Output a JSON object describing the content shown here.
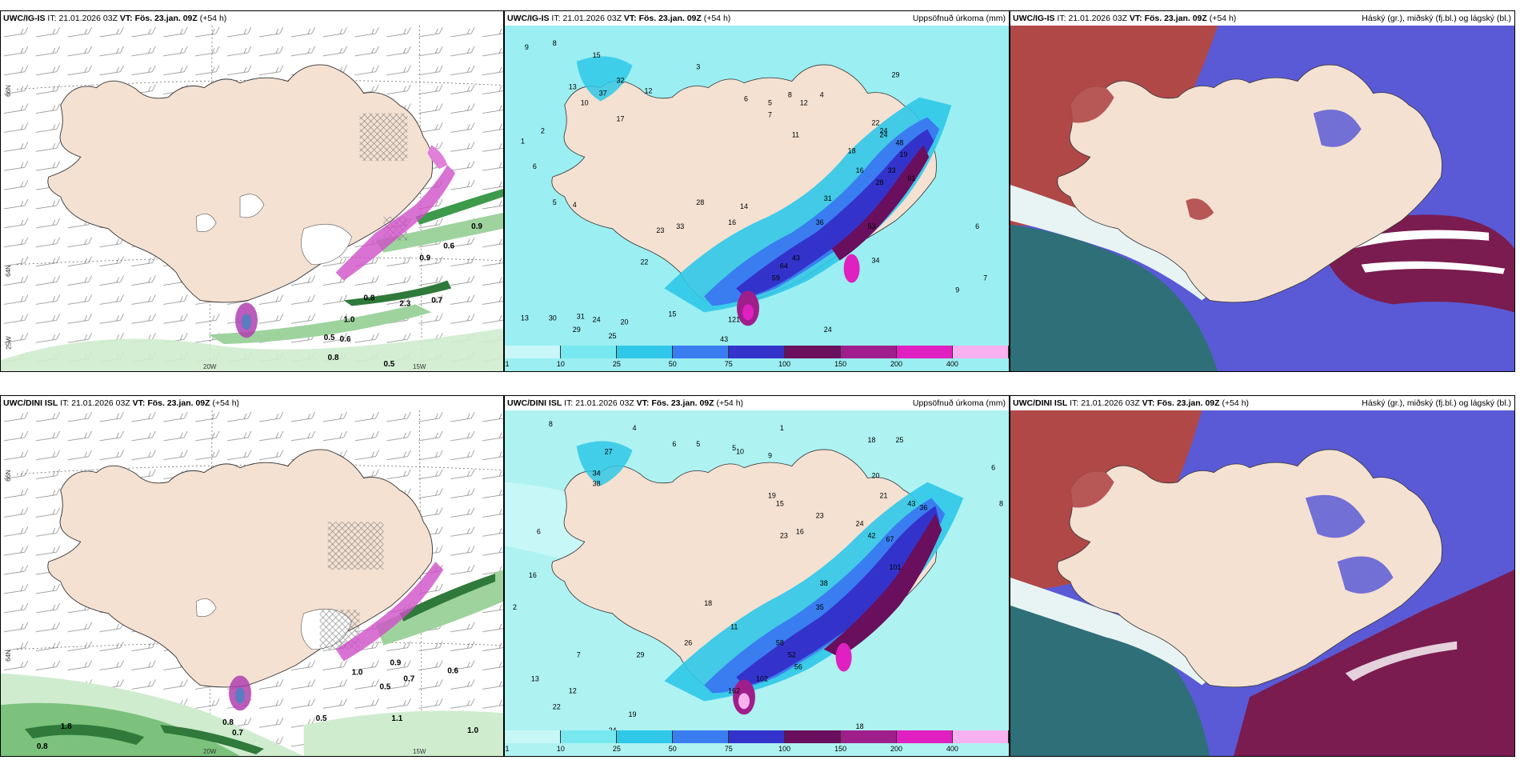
{
  "colors": {
    "land": "#f4e1d2",
    "sea_light": "#aef2f2",
    "precip_1": "#c8f7f7",
    "precip_10": "#77e8f0",
    "precip_25": "#2fc8e8",
    "precip_50": "#3a7df0",
    "precip_75": "#3333cc",
    "precip_100": "#6a0e5e",
    "precip_150": "#a01e8c",
    "precip_200": "#e020c0",
    "precip_400": "#f7b0f0",
    "cloud_high": "#b04848",
    "cloud_mid": "#5a5ad6",
    "cloud_low": "#2f6f78",
    "snow_magenta": "#d050c8",
    "wind_green": "#3c9a4a"
  },
  "panels": [
    {
      "model": "UWC/IG-IS",
      "it_label": "IT:",
      "it_value": "21.01.2026 03Z",
      "vt_label": "VT:",
      "vt_value": "Fös. 23.jan. 09Z",
      "lead": "(+54 h)",
      "right_title": ""
    },
    {
      "model": "UWC/IG-IS",
      "it_label": "IT:",
      "it_value": "21.01.2026 03Z",
      "vt_label": "VT:",
      "vt_value": "Fös. 23.jan. 09Z",
      "lead": "(+54 h)",
      "right_title": "Uppsöfnuð úrkoma (mm)"
    },
    {
      "model": "UWC/IG-IS",
      "it_label": "IT:",
      "it_value": "21.01.2026 03Z",
      "vt_label": "VT:",
      "vt_value": "Fös. 23.jan. 09Z",
      "lead": "(+54 h)",
      "right_title": "Háský (gr.), miðský (fj.bl.) og lágský (bl.)"
    },
    {
      "model": "UWC/DINI ISL",
      "it_label": "IT:",
      "it_value": "21.01.2026 03Z",
      "vt_label": "VT:",
      "vt_value": "Fös. 23.jan. 09Z",
      "lead": "(+54 h)",
      "right_title": ""
    },
    {
      "model": "UWC/DINI ISL",
      "it_label": "IT:",
      "it_value": "21.01.2026 03Z",
      "vt_label": "VT:",
      "vt_value": "Fös. 23.jan. 09Z",
      "lead": "(+54 h)",
      "right_title": "Uppsöfnuð úrkoma (mm)"
    },
    {
      "model": "UWC/DINI ISL",
      "it_label": "IT:",
      "it_value": "21.01.2026 03Z",
      "vt_label": "VT:",
      "vt_value": "Fös. 23.jan. 09Z",
      "lead": "(+54 h)",
      "right_title": "Háský (gr.), miðský (fj.bl.) og lágský (bl.)"
    }
  ],
  "colorbar": {
    "labels": [
      "1",
      "10",
      "25",
      "50",
      "75",
      "100",
      "150",
      "200",
      "400"
    ]
  },
  "axes": {
    "lat_66": "66N",
    "lat_64": "64N",
    "lon_20": "20W",
    "lon_15": "15W",
    "lon_25": "25W"
  },
  "precip_values_top": [
    "9",
    "8",
    "15",
    "32",
    "37",
    "3",
    "12",
    "17",
    "10",
    "13",
    "2",
    "6",
    "5",
    "4",
    "28",
    "33",
    "23",
    "22",
    "16",
    "14",
    "6",
    "5",
    "8",
    "12",
    "4",
    "7",
    "11",
    "29",
    "22",
    "24",
    "48",
    "19",
    "33",
    "28",
    "24",
    "18",
    "16",
    "61",
    "31",
    "36",
    "53",
    "43",
    "64",
    "59",
    "121",
    "13",
    "30",
    "31",
    "29",
    "20",
    "24",
    "15",
    "25",
    "43",
    "6",
    "7",
    "9",
    "24",
    "34",
    "1"
  ],
  "precip_values_bottom": [
    "8",
    "4",
    "5",
    "27",
    "34",
    "38",
    "6",
    "5",
    "1",
    "9",
    "18",
    "25",
    "20",
    "19",
    "21",
    "43",
    "36",
    "24",
    "42",
    "67",
    "101",
    "38",
    "35",
    "23",
    "16",
    "15",
    "23",
    "11",
    "26",
    "29",
    "12",
    "13",
    "22",
    "19",
    "24",
    "18",
    "13",
    "6",
    "8",
    "2",
    "7",
    "18",
    "16",
    "6",
    "10",
    "58",
    "52",
    "56",
    "162",
    "102"
  ],
  "wind_values_top": [
    "0.6",
    "0.9",
    "0.8",
    "0.7",
    "0.5",
    "0.6",
    "0.5",
    "0.8",
    "1.0",
    "2.3",
    "0.9"
  ],
  "wind_values_bottom": [
    "1.0",
    "0.9",
    "0.7",
    "0.5",
    "0.6",
    "0.8",
    "0.7",
    "0.5",
    "1.1",
    "1.0",
    "1.8",
    "0.8"
  ]
}
